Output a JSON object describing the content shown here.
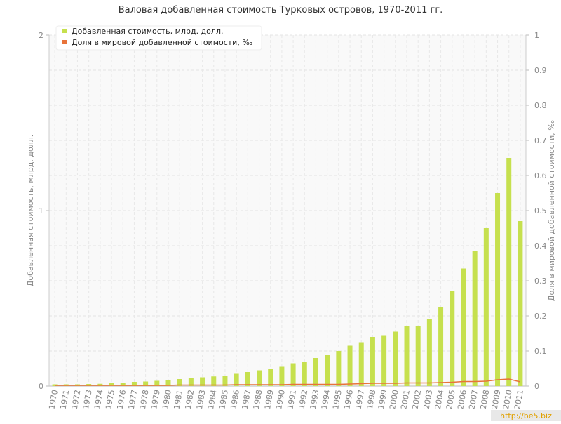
{
  "chart_data": {
    "type": "bar_line",
    "title": "Валовая добавленная стоимость Турковых островов, 1970-2011 гг.",
    "y_label": "Добавленная стоимость, млрд. долл.",
    "y2_label": "Доля в мировой добавленной стоимости, ‰",
    "watermark": "http://be5.biz",
    "categories": [
      "1970",
      "1971",
      "1972",
      "1973",
      "1974",
      "1975",
      "1976",
      "1977",
      "1978",
      "1979",
      "1980",
      "1981",
      "1982",
      "1983",
      "1984",
      "1985",
      "1986",
      "1987",
      "1988",
      "1989",
      "1990",
      "1991",
      "1992",
      "1993",
      "1994",
      "1995",
      "1996",
      "1997",
      "1998",
      "1999",
      "2000",
      "2001",
      "2002",
      "2003",
      "2004",
      "2005",
      "2006",
      "2007",
      "2008",
      "2009",
      "2010",
      "2011"
    ],
    "series": [
      {
        "name": "Добавленная стоимость, млрд. долл.",
        "color": "#c6e04e",
        "kind": "bar",
        "values": [
          0.01,
          0.01,
          0.01,
          0.012,
          0.013,
          0.016,
          0.02,
          0.024,
          0.026,
          0.03,
          0.034,
          0.04,
          0.045,
          0.05,
          0.055,
          0.06,
          0.07,
          0.08,
          0.09,
          0.1,
          0.11,
          0.13,
          0.14,
          0.16,
          0.18,
          0.2,
          0.23,
          0.25,
          0.28,
          0.29,
          0.31,
          0.34,
          0.34,
          0.38,
          0.45,
          0.54,
          0.67,
          0.77,
          0.9,
          1.1,
          1.3,
          0.94
        ]
      },
      {
        "name": "Доля в мировой добавленной стоимости, ‰",
        "color": "#e8733a",
        "kind": "line",
        "axis": "y2",
        "values": [
          0.002,
          0.002,
          0.002,
          0.002,
          0.002,
          0.002,
          0.002,
          0.002,
          0.002,
          0.002,
          0.002,
          0.003,
          0.003,
          0.003,
          0.003,
          0.003,
          0.004,
          0.004,
          0.004,
          0.004,
          0.004,
          0.005,
          0.005,
          0.005,
          0.005,
          0.005,
          0.006,
          0.007,
          0.008,
          0.008,
          0.008,
          0.009,
          0.009,
          0.009,
          0.01,
          0.011,
          0.013,
          0.013,
          0.014,
          0.018,
          0.02,
          0.012
        ]
      }
    ],
    "ylim": [
      0,
      2
    ],
    "yticks": [
      0,
      1,
      2
    ],
    "y2lim": [
      0,
      1
    ],
    "y2ticks": [
      0,
      0.1,
      0.2,
      0.3,
      0.4,
      0.5,
      0.6,
      0.7,
      0.8,
      0.9,
      1
    ],
    "grid": true,
    "legend": "top-left"
  }
}
